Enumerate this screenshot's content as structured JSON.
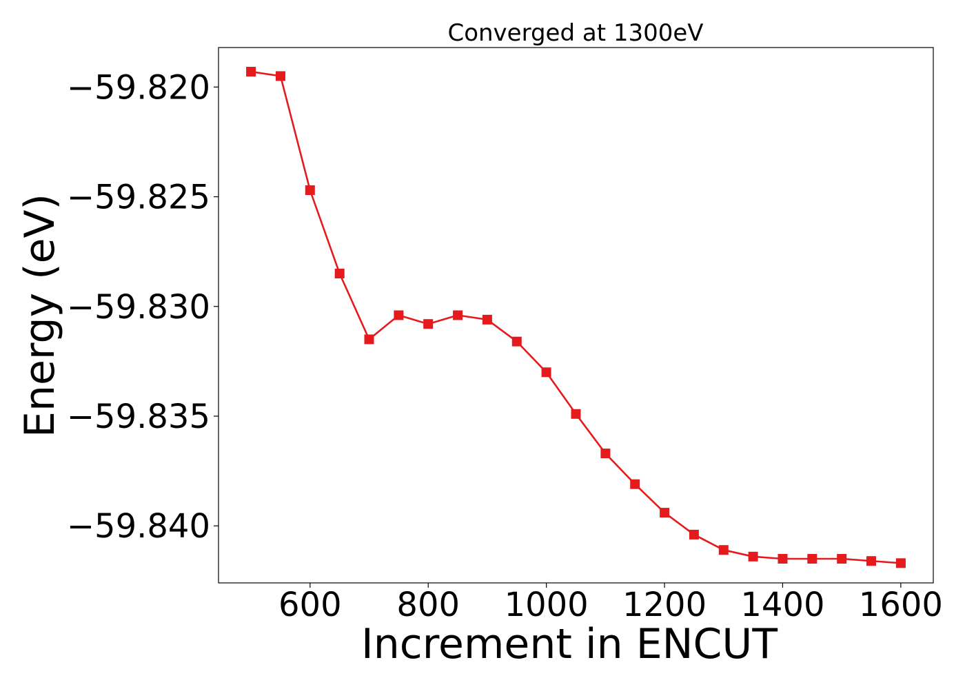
{
  "chart_data": {
    "type": "line",
    "title": "Converged at 1300eV",
    "xlabel": "Increment in ENCUT",
    "ylabel": "Energy (eV)",
    "xlim": [
      445,
      1655
    ],
    "ylim": [
      -59.8426,
      -59.8182
    ],
    "xticks": [
      600,
      800,
      1000,
      1200,
      1400,
      1600
    ],
    "xtick_labels": [
      "600",
      "800",
      "1000",
      "1200",
      "1400",
      "1600"
    ],
    "yticks": [
      -59.82,
      -59.825,
      -59.83,
      -59.835,
      -59.84
    ],
    "ytick_labels": [
      "−59.820",
      "−59.825",
      "−59.830",
      "−59.835",
      "−59.840"
    ],
    "grid": false,
    "marker": "square",
    "color": "#e41a1c",
    "series": [
      {
        "x": [
          500,
          550,
          600,
          650,
          700,
          750,
          800,
          850,
          900,
          950,
          1000,
          1050,
          1100,
          1150,
          1200,
          1250,
          1300,
          1350,
          1400,
          1450,
          1500,
          1550,
          1600
        ],
        "y": [
          -59.8193,
          -59.8195,
          -59.8247,
          -59.8285,
          -59.8315,
          -59.8304,
          -59.8308,
          -59.8304,
          -59.8306,
          -59.8316,
          -59.833,
          -59.8349,
          -59.8367,
          -59.8381,
          -59.8394,
          -59.8404,
          -59.8411,
          -59.8414,
          -59.8415,
          -59.8415,
          -59.8415,
          -59.8416,
          -59.8417
        ]
      }
    ]
  }
}
